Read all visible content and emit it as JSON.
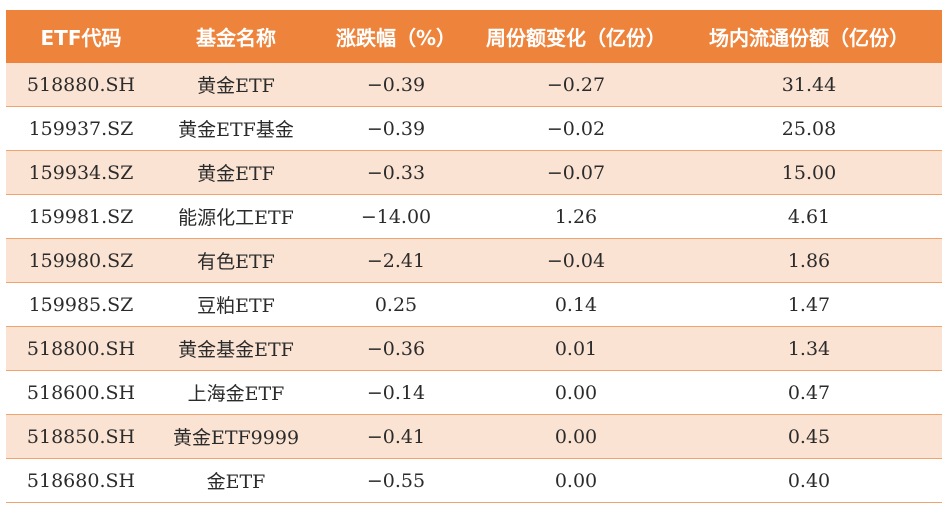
{
  "table": {
    "headers": [
      "ETF代码",
      "基金名称",
      "涨跌幅（%）",
      "周份额变化（亿份）",
      "场内流通份额（亿份）"
    ],
    "rows": [
      [
        "518880.SH",
        "黄金ETF",
        "−0.39",
        "−0.27",
        "31.44"
      ],
      [
        "159937.SZ",
        "黄金ETF基金",
        "−0.39",
        "−0.02",
        "25.08"
      ],
      [
        "159934.SZ",
        "黄金ETF",
        "−0.33",
        "−0.07",
        "15.00"
      ],
      [
        "159981.SZ",
        "能源化工ETF",
        "−14.00",
        "1.26",
        "4.61"
      ],
      [
        "159980.SZ",
        "有色ETF",
        "−2.41",
        "−0.04",
        "1.86"
      ],
      [
        "159985.SZ",
        "豆粕ETF",
        "0.25",
        "0.14",
        "1.47"
      ],
      [
        "518800.SH",
        "黄金基金ETF",
        "−0.36",
        "0.01",
        "1.34"
      ],
      [
        "518600.SH",
        "上海金ETF",
        "−0.14",
        "0.00",
        "0.47"
      ],
      [
        "518850.SH",
        "黄金ETF9999",
        "−0.41",
        "0.00",
        "0.45"
      ],
      [
        "518680.SH",
        "金ETF",
        "−0.55",
        "0.00",
        "0.40"
      ]
    ]
  },
  "colors": {
    "header_bg": "#ee833b",
    "header_text": "#ffffff",
    "stripe_bg": "#fbe3d3",
    "row_border": "#f0a36c"
  }
}
